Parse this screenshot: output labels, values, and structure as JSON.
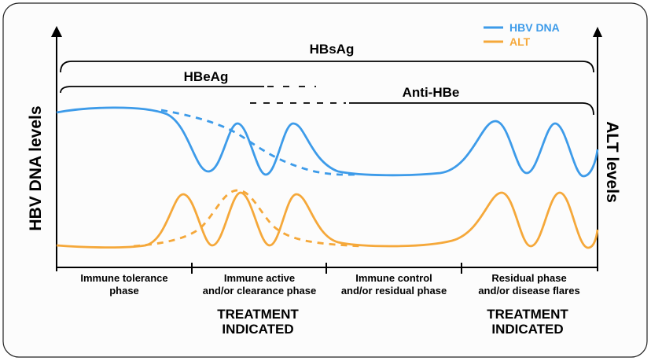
{
  "legend": [
    {
      "label": "HBV DNA",
      "color": "#3d9be9"
    },
    {
      "label": "ALT",
      "color": "#f5a83a"
    }
  ],
  "axes": {
    "left_label": "HBV DNA levels",
    "right_label": "ALT levels"
  },
  "markers": {
    "hbsag": "HBsAg",
    "hbeag": "HBeAg",
    "anti_hbe": "Anti-HBe"
  },
  "phases": [
    {
      "line1": "Immune tolerance",
      "line2": "phase"
    },
    {
      "line1": "Immune active",
      "line2": "and/or clearance phase"
    },
    {
      "line1": "Immune control",
      "line2": "and/or residual phase"
    },
    {
      "line1": "Residual phase",
      "line2": "and/or disease flares"
    }
  ],
  "treatment": [
    {
      "line1": "TREATMENT",
      "line2": "INDICATED"
    },
    {
      "line1": "TREATMENT",
      "line2": "INDICATED"
    }
  ]
}
